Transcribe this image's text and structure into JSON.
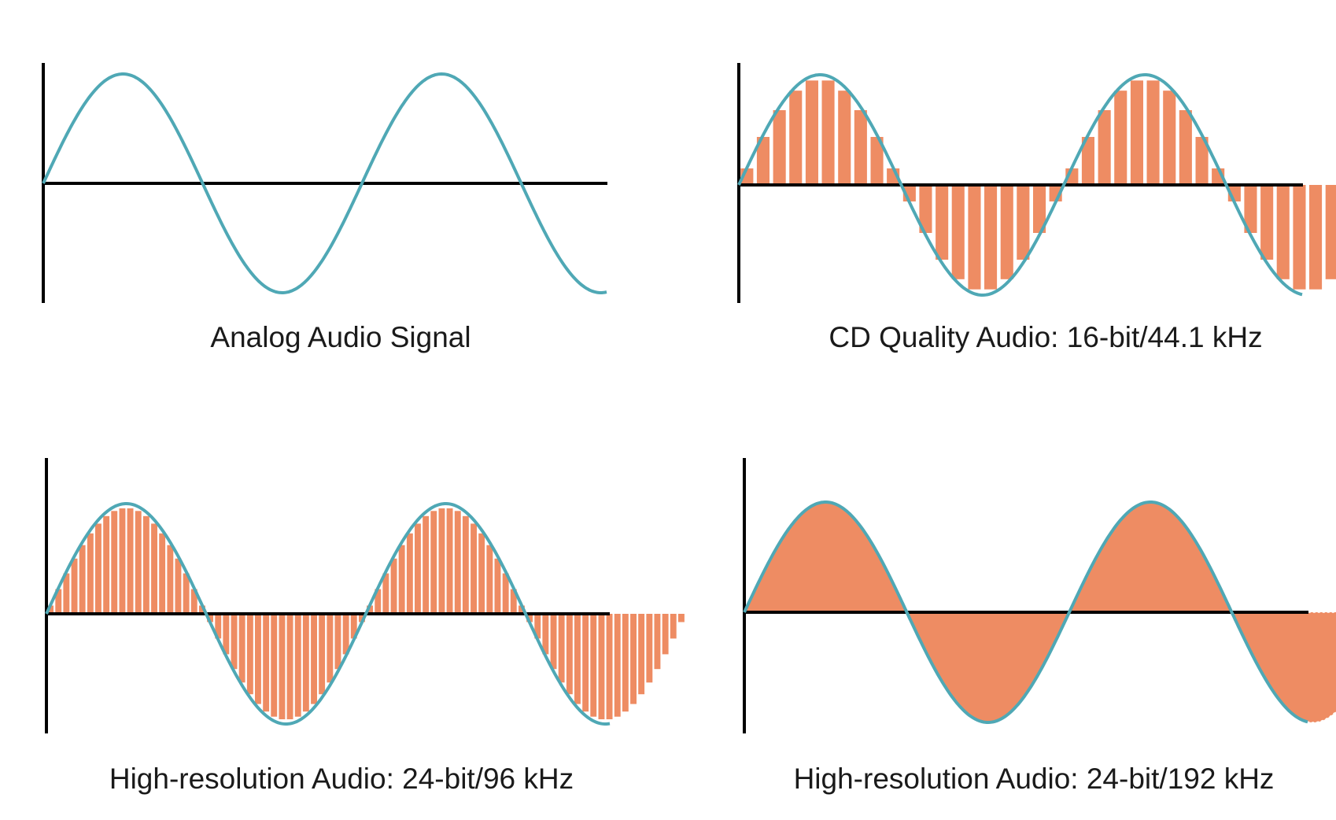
{
  "colors": {
    "wave": "#4fa8b5",
    "sample": "#ee8c63",
    "axis": "#000000",
    "caption": "#1a1a1a"
  },
  "panels": [
    {
      "caption": "Analog Audio Signal",
      "style": "analog",
      "samples_per_cycle": 0
    },
    {
      "caption": "CD Quality Audio: 16-bit/44.1 kHz",
      "style": "bars",
      "samples_per_cycle": 20
    },
    {
      "caption": "High-resolution Audio: 24-bit/96 kHz",
      "style": "bars",
      "samples_per_cycle": 40
    },
    {
      "caption": "High-resolution Audio: 24-bit/192 kHz",
      "style": "filled",
      "samples_per_cycle": 0
    }
  ]
}
